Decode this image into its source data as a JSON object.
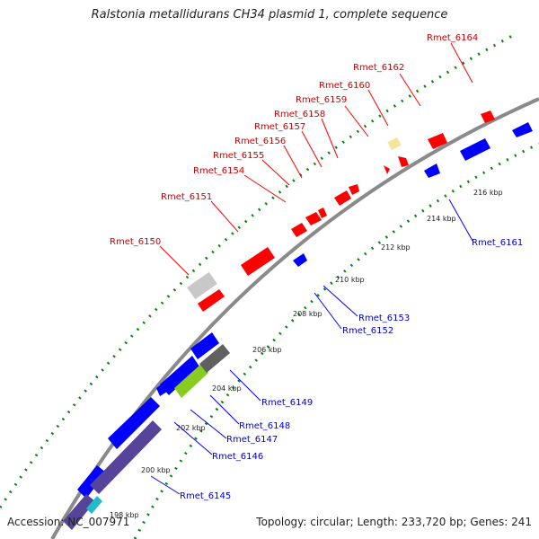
{
  "title": "Ralstonia metallidurans CH34 plasmid 1, complete sequence",
  "accession": "Accession: NC_007971",
  "summary": "Topology: circular; Length: 233,720 bp; Genes: 241",
  "colors": {
    "forward_gene": "#ff0000",
    "reverse_gene": "#0000ff",
    "forward_label": "#cc0000",
    "reverse_label": "#0000cc",
    "backbone": "#8a8a8a",
    "tick_marks": "#008800"
  },
  "ticks": [
    "200 kbp",
    "202 kbp",
    "204 kbp",
    "206 kbp",
    "208 kbp",
    "210 kbp",
    "212 kbp",
    "214 kbp",
    "216 kbp"
  ],
  "forward_labels": [
    "Rmet_6150",
    "Rmet_6151",
    "Rmet_6154",
    "Rmet_6155",
    "Rmet_6156",
    "Rmet_6157",
    "Rmet_6158",
    "Rmet_6159",
    "Rmet_6160",
    "Rmet_6162",
    "Rmet_6164"
  ],
  "reverse_labels": [
    "Rmet_6161",
    "Rmet_6153",
    "Rmet_6152",
    "Rmet_6149",
    "Rmet_6148",
    "Rmet_6147",
    "Rmet_6146",
    "Rmet_6145"
  ],
  "partial_tick": "198 kbp"
}
